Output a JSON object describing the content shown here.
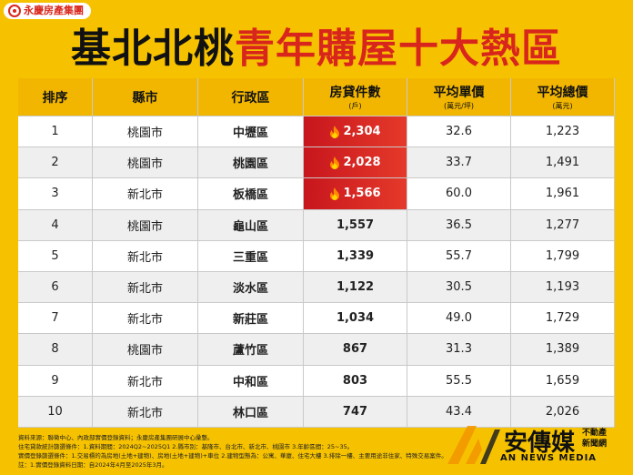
{
  "brand": "永慶房產集團",
  "title": {
    "part1": "基北北桃",
    "part2": "青年購屋十大熱區"
  },
  "table": {
    "headers": [
      {
        "label": "排序"
      },
      {
        "label": "縣市"
      },
      {
        "label": "行政區"
      },
      {
        "label": "房貸件數",
        "unit": "(戶)"
      },
      {
        "label": "平均單價",
        "unit": "(萬元/坪)"
      },
      {
        "label": "平均總價",
        "unit": "(萬元)"
      }
    ],
    "rows": [
      [
        "1",
        "桃園市",
        "中壢區",
        "2,304",
        "32.6",
        "1,223"
      ],
      [
        "2",
        "桃園市",
        "桃園區",
        "2,028",
        "33.7",
        "1,491"
      ],
      [
        "3",
        "新北市",
        "板橋區",
        "1,566",
        "60.0",
        "1,961"
      ],
      [
        "4",
        "桃園市",
        "龜山區",
        "1,557",
        "36.5",
        "1,277"
      ],
      [
        "5",
        "新北市",
        "三重區",
        "1,339",
        "55.7",
        "1,799"
      ],
      [
        "6",
        "新北市",
        "淡水區",
        "1,122",
        "30.5",
        "1,193"
      ],
      [
        "7",
        "新北市",
        "新莊區",
        "1,034",
        "49.0",
        "1,729"
      ],
      [
        "8",
        "桃園市",
        "蘆竹區",
        "867",
        "31.3",
        "1,389"
      ],
      [
        "9",
        "新北市",
        "中和區",
        "803",
        "55.5",
        "1,659"
      ],
      [
        "10",
        "新北市",
        "林口區",
        "747",
        "43.4",
        "2,026"
      ]
    ]
  },
  "footnotes": [
    "資料來源：聯徵中心、內政部實價登錄資料；永慶房產集團研展中心彙整。",
    "住宅貸款統計篩選條件：1.資料期間：2024Q2~2025Q1 2.縣市別：基隆市、台北市、新北市、桃園市 3.年齡區間：25~35。",
    "實價登錄篩選條件：1.交易標的為房地(土地+建物)、房地(土地+建物)+車位 2.建物型態為：公寓、華廈、住宅大樓 3.排除一樓、主要用途非住家、特殊交易案件。",
    "註：1.實價登錄資料日期：自2024年4月至2025年3月。"
  ],
  "watermark": {
    "name": "安傳媒",
    "tag1": "不動產",
    "tag2": "新聞網",
    "english": "AN NEWS MEDIA"
  }
}
